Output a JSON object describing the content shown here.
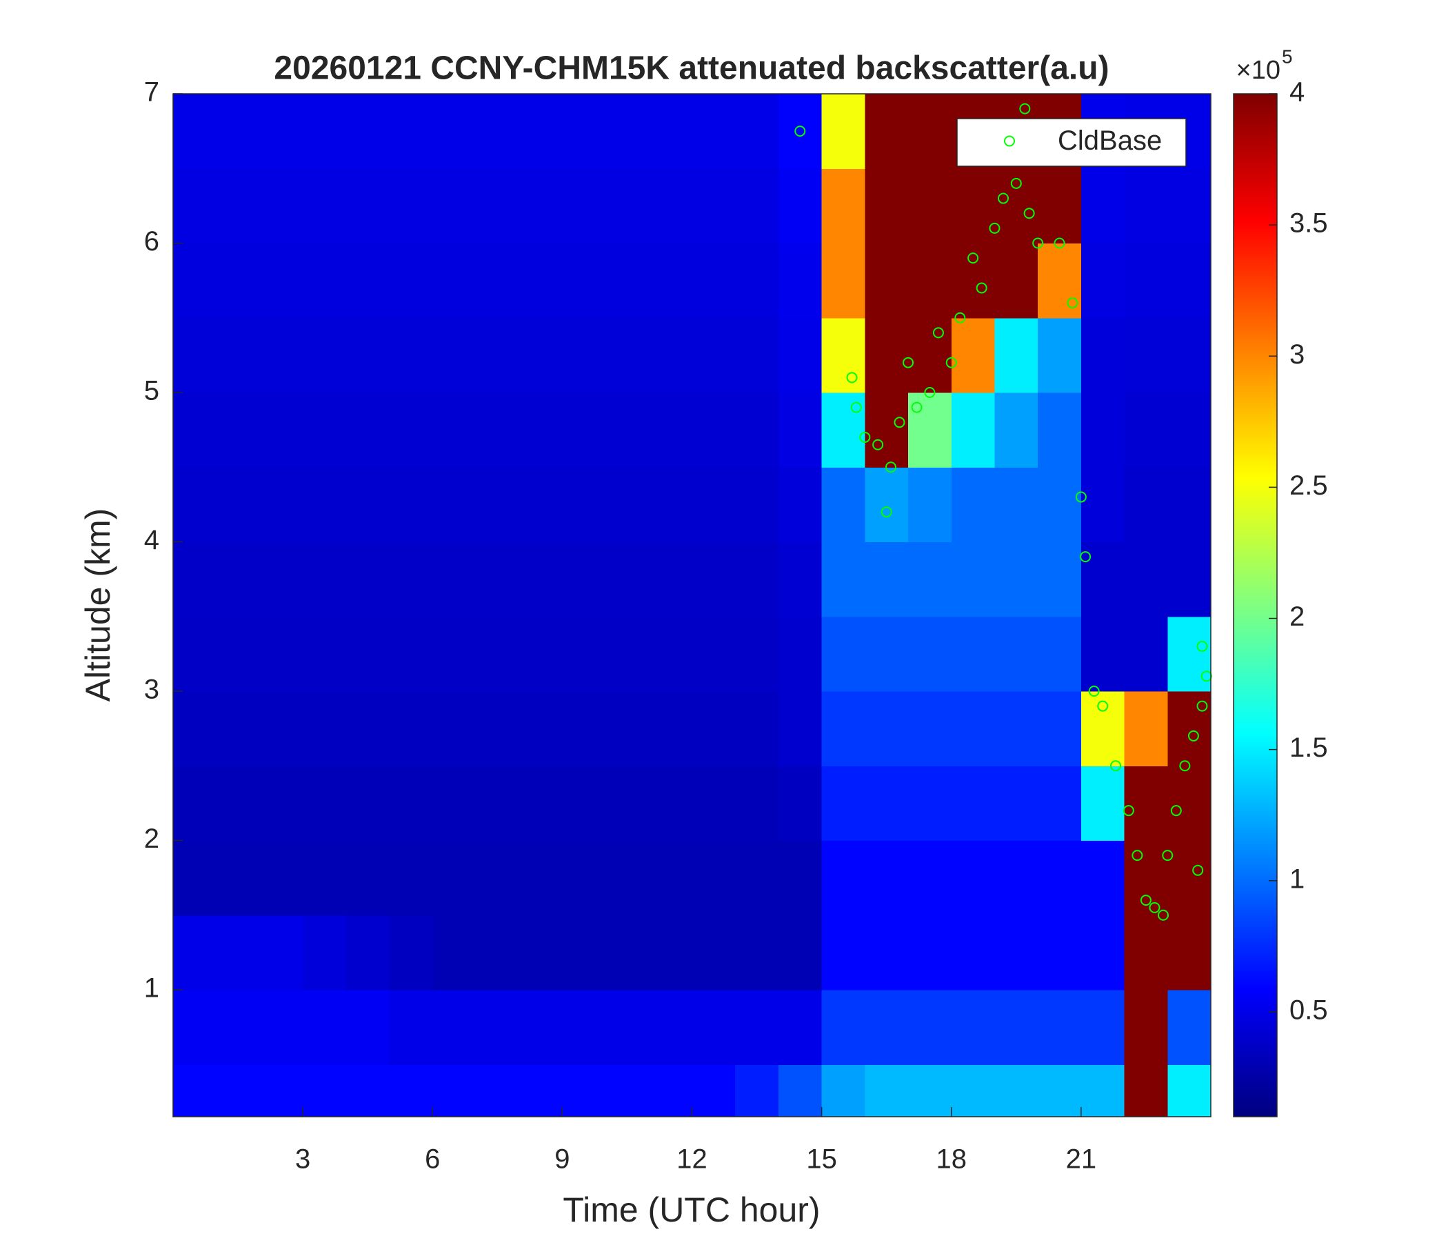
{
  "chart_data": {
    "type": "heatmap",
    "title": "20260121 CCNY-CHM15K attenuated backscatter(a.u)",
    "xlabel": "Time (UTC hour)",
    "ylabel": "Altitude (km)",
    "xlim": [
      0,
      24
    ],
    "xticks": [
      3,
      6,
      9,
      12,
      15,
      18,
      21
    ],
    "ylim": [
      0.15,
      7
    ],
    "yticks": [
      1,
      2,
      3,
      4,
      5,
      6,
      7
    ],
    "colormap": "jet",
    "clim": [
      10000,
      400000
    ],
    "cticks": [
      {
        "value": 50000,
        "label": "0.5"
      },
      {
        "value": 100000,
        "label": "1"
      },
      {
        "value": 150000,
        "label": "1.5"
      },
      {
        "value": 200000,
        "label": "2"
      },
      {
        "value": 250000,
        "label": "2.5"
      },
      {
        "value": 300000,
        "label": "3"
      },
      {
        "value": 350000,
        "label": "3.5"
      },
      {
        "value": 400000,
        "label": "4"
      }
    ],
    "colorbar_multiplier": {
      "base": "×10",
      "exponent": "5"
    },
    "x_edges": [
      0,
      1,
      2,
      3,
      4,
      5,
      6,
      7,
      8,
      9,
      10,
      11,
      12,
      13,
      14,
      15,
      16,
      17,
      18,
      19,
      20,
      21,
      22,
      23,
      24
    ],
    "y_edges": [
      0.15,
      0.5,
      1,
      1.5,
      2,
      2.5,
      3,
      3.5,
      4,
      4.5,
      5,
      5.5,
      6,
      6.5,
      7
    ],
    "z": [
      [
        60000,
        60000,
        60000,
        60000,
        60000,
        60000,
        60000,
        60000,
        60000,
        60000,
        60000,
        60000,
        60000,
        70000,
        90000,
        120000,
        130000,
        130000,
        130000,
        130000,
        130000,
        130000,
        400000,
        150000
      ],
      [
        55000,
        55000,
        55000,
        55000,
        55000,
        50000,
        50000,
        50000,
        50000,
        50000,
        50000,
        50000,
        50000,
        50000,
        50000,
        80000,
        80000,
        80000,
        80000,
        80000,
        80000,
        80000,
        400000,
        90000
      ],
      [
        50000,
        50000,
        50000,
        45000,
        40000,
        35000,
        30000,
        30000,
        30000,
        30000,
        30000,
        30000,
        30000,
        30000,
        30000,
        60000,
        60000,
        60000,
        60000,
        60000,
        60000,
        60000,
        400000,
        400000
      ],
      [
        30000,
        30000,
        30000,
        30000,
        30000,
        30000,
        30000,
        30000,
        30000,
        30000,
        30000,
        30000,
        30000,
        30000,
        30000,
        60000,
        60000,
        60000,
        60000,
        60000,
        60000,
        60000,
        400000,
        400000
      ],
      [
        32000,
        32000,
        32000,
        32000,
        32000,
        32000,
        32000,
        32000,
        32000,
        32000,
        32000,
        32000,
        32000,
        32000,
        35000,
        70000,
        70000,
        70000,
        70000,
        70000,
        70000,
        150000,
        400000,
        400000
      ],
      [
        35000,
        35000,
        35000,
        35000,
        35000,
        35000,
        35000,
        35000,
        35000,
        35000,
        35000,
        35000,
        35000,
        35000,
        40000,
        80000,
        80000,
        80000,
        80000,
        80000,
        80000,
        250000,
        300000,
        400000
      ],
      [
        37000,
        37000,
        37000,
        37000,
        37000,
        37000,
        37000,
        37000,
        37000,
        37000,
        37000,
        37000,
        37000,
        37000,
        40000,
        90000,
        90000,
        90000,
        90000,
        90000,
        90000,
        40000,
        40000,
        150000
      ],
      [
        38000,
        38000,
        38000,
        38000,
        38000,
        38000,
        38000,
        38000,
        38000,
        38000,
        38000,
        38000,
        38000,
        38000,
        42000,
        100000,
        100000,
        100000,
        100000,
        100000,
        100000,
        40000,
        40000,
        40000
      ],
      [
        40000,
        40000,
        40000,
        40000,
        40000,
        40000,
        40000,
        40000,
        40000,
        40000,
        40000,
        40000,
        40000,
        40000,
        45000,
        100000,
        120000,
        110000,
        100000,
        100000,
        100000,
        45000,
        40000,
        40000
      ],
      [
        42000,
        42000,
        42000,
        42000,
        42000,
        42000,
        42000,
        42000,
        42000,
        42000,
        42000,
        42000,
        42000,
        42000,
        48000,
        150000,
        400000,
        200000,
        150000,
        120000,
        100000,
        45000,
        42000,
        42000
      ],
      [
        44000,
        44000,
        44000,
        44000,
        44000,
        44000,
        44000,
        44000,
        44000,
        44000,
        44000,
        44000,
        44000,
        44000,
        50000,
        250000,
        400000,
        400000,
        300000,
        150000,
        120000,
        45000,
        44000,
        44000
      ],
      [
        46000,
        46000,
        46000,
        46000,
        46000,
        46000,
        46000,
        46000,
        46000,
        46000,
        46000,
        46000,
        46000,
        46000,
        52000,
        300000,
        400000,
        400000,
        400000,
        400000,
        300000,
        48000,
        46000,
        46000
      ],
      [
        48000,
        48000,
        48000,
        48000,
        48000,
        48000,
        48000,
        48000,
        48000,
        48000,
        48000,
        48000,
        48000,
        48000,
        55000,
        300000,
        400000,
        400000,
        400000,
        400000,
        400000,
        50000,
        48000,
        48000
      ],
      [
        50000,
        50000,
        50000,
        50000,
        50000,
        50000,
        50000,
        50000,
        50000,
        50000,
        50000,
        50000,
        50000,
        50000,
        58000,
        250000,
        400000,
        400000,
        400000,
        400000,
        400000,
        52000,
        50000,
        50000
      ]
    ],
    "series": [
      {
        "name": "CldBase",
        "color": "#00ff00",
        "x": [
          14.5,
          15.7,
          15.8,
          16.0,
          16.3,
          16.5,
          16.6,
          16.8,
          17.0,
          17.2,
          17.5,
          17.7,
          18.0,
          18.2,
          18.5,
          18.7,
          19.0,
          19.2,
          19.5,
          19.7,
          19.8,
          20.0,
          20.5,
          20.8,
          21.0,
          21.1,
          21.3,
          21.5,
          21.8,
          22.1,
          22.3,
          22.5,
          22.7,
          22.9,
          23.0,
          23.2,
          23.4,
          23.6,
          23.8,
          23.9,
          23.8,
          23.7
        ],
        "y": [
          6.75,
          5.1,
          4.9,
          4.7,
          4.65,
          4.2,
          4.5,
          4.8,
          5.2,
          4.9,
          5.0,
          5.4,
          5.2,
          5.5,
          5.9,
          5.7,
          6.1,
          6.3,
          6.4,
          6.9,
          6.2,
          6.0,
          6.0,
          5.6,
          4.3,
          3.9,
          3.0,
          2.9,
          2.5,
          2.2,
          1.9,
          1.6,
          1.55,
          1.5,
          1.9,
          2.2,
          2.5,
          2.7,
          2.9,
          3.1,
          3.3,
          1.8
        ]
      }
    ],
    "legend": "northeast"
  }
}
